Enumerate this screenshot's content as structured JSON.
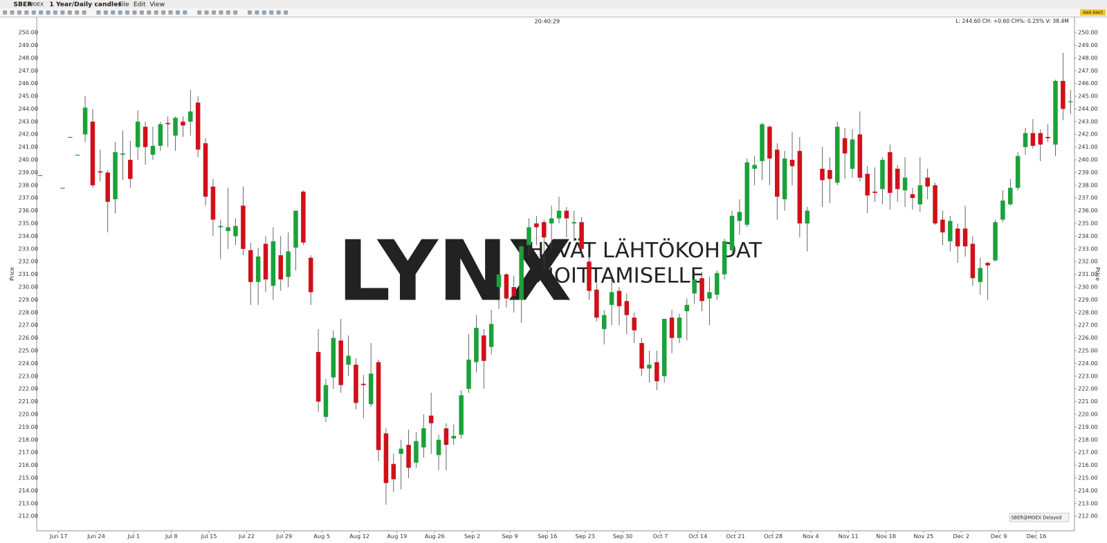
{
  "app": {
    "symbol": "SBER",
    "exchange": "MOEX",
    "period": "1 Year/Daily candles",
    "menu": [
      "File",
      "Edit",
      "View"
    ],
    "time": "20:40:29",
    "quote": "L: 244.60   CH: +0.60 CH%: 0.25% V: 38.4M",
    "add_alert": "Add Alert",
    "feed": "SBER@MOEX Delayed",
    "watermark": {
      "brand": "LYNX",
      "slogan": [
        "HYVÄT LÄHTÖKOHDAT",
        "SIJOITTAMISELLE"
      ]
    }
  },
  "chart_data": {
    "type": "candlestick",
    "y_label": "Price",
    "up_color": "#1aa23a",
    "down_color": "#d0101a",
    "categories": [
      null,
      null,
      "Jun 17",
      null,
      null,
      null,
      null,
      "Jun 24",
      null,
      null,
      null,
      null,
      "Jul 1",
      null,
      null,
      null,
      null,
      "Jul 8",
      null,
      null,
      null,
      null,
      "Jul 15",
      null,
      null,
      null,
      null,
      "Jul 22",
      null,
      null,
      null,
      null,
      "Jul 29",
      null,
      null,
      null,
      null,
      "Aug 5",
      null,
      null,
      null,
      null,
      "Aug 12",
      null,
      null,
      null,
      null,
      "Aug 19",
      null,
      null,
      null,
      null,
      "Aug 26",
      null,
      null,
      null,
      null,
      "Sep 2",
      null,
      null,
      null,
      null,
      "Sep 9",
      null,
      null,
      null,
      null,
      "Sep 16",
      null,
      null,
      null,
      null,
      "Sep 23",
      null,
      null,
      null,
      null,
      "Sep 30",
      null,
      null,
      null,
      null,
      "Oct 7",
      null,
      null,
      null,
      null,
      "Oct 14",
      null,
      null,
      null,
      null,
      "Oct 21",
      null,
      null,
      null,
      null,
      "Oct 28",
      null,
      null,
      null,
      null,
      "Nov 4",
      null,
      null,
      null,
      null,
      "Nov 11",
      null,
      null,
      null,
      null,
      "Nov 18",
      null,
      null,
      null,
      null,
      "Nov 25",
      null,
      null,
      null,
      null,
      "Dec 2",
      null,
      null,
      null,
      null,
      "Dec 9",
      null,
      null,
      null,
      null,
      "Dec 16",
      null,
      null,
      null,
      null,
      null
    ],
    "open": [
      238.8,
      null,
      null,
      237.8,
      241.8,
      240.4,
      242,
      243,
      239.1,
      239,
      236.9,
      240.4,
      240,
      241,
      242.6,
      240.4,
      241.1,
      242.9,
      241.9,
      243,
      243,
      244.5,
      241.3,
      237.9,
      234.7,
      234.4,
      234,
      236.4,
      232.9,
      230.4,
      233.4,
      230.1,
      232.5,
      230.8,
      233.1,
      237.5,
      232.3,
      224.9,
      219.8,
      222.9,
      225.8,
      223.9,
      223.9,
      222.4,
      220.8,
      224.1,
      218.5,
      216.1,
      216.9,
      217.6,
      216.2,
      217.4,
      219.9,
      216.8,
      218.9,
      218.1,
      218.4,
      222,
      224.1,
      226.2,
      225.3,
      230,
      231,
      230,
      229,
      233.3,
      235,
      235.1,
      235,
      235.4,
      236,
      235,
      235.1,
      232,
      229.8,
      226.7,
      228.6,
      229.7,
      228.9,
      227.6,
      225.6,
      223.6,
      224.1,
      223,
      227.6,
      226,
      228.1,
      229.5,
      230.7,
      229.1,
      229.4,
      231,
      232.9,
      235.2,
      234.9,
      239.3,
      239.9,
      242.6,
      240.8,
      236.9,
      240,
      240.7,
      235,
      null,
      239.3,
      239.2,
      238.2,
      241.7,
      239.3,
      242,
      238.9,
      237.5,
      237.7,
      240.6,
      239.3,
      237.6,
      237.3,
      236.5,
      238.6,
      238,
      235.3,
      233.6,
      234.6,
      234.6,
      233.4,
      230.4,
      231.9,
      232.1,
      235.3,
      236.5,
      237.8,
      241,
      242.1,
      242.1,
      241.8,
      241.2,
      246.2,
      244.6
    ],
    "high": [
      238.8,
      null,
      null,
      237.8,
      241.8,
      240.4,
      245,
      244,
      240.8,
      239.2,
      241.4,
      242.3,
      241.5,
      243.9,
      243,
      242.6,
      243,
      243.4,
      243.4,
      243.4,
      245.5,
      245,
      241.7,
      238.5,
      235.3,
      237.8,
      235.4,
      237.9,
      233.5,
      233.1,
      234,
      234.7,
      234,
      234.3,
      236,
      237.6,
      232.5,
      226.7,
      222.8,
      226.6,
      227.5,
      226.2,
      224.4,
      223.1,
      225.6,
      224.3,
      218.9,
      216.9,
      218,
      218.8,
      218.6,
      220,
      221.7,
      218.4,
      219.3,
      219.2,
      221.9,
      226.3,
      227.8,
      226.7,
      228.2,
      231,
      231.1,
      230.9,
      233.5,
      235.4,
      235.6,
      235.3,
      236.4,
      237.1,
      236.3,
      236,
      235.5,
      232.5,
      230.3,
      228.2,
      230.7,
      230,
      229.5,
      228,
      226,
      225,
      225,
      227.5,
      228.2,
      227.9,
      229.1,
      231.2,
      231.2,
      230.8,
      231.3,
      233.8,
      236,
      236.9,
      240.1,
      240.3,
      242.9,
      242.7,
      241.3,
      240.7,
      242.2,
      241.8,
      236.3,
      null,
      241,
      240.2,
      243,
      242.5,
      242.4,
      243.8,
      239.5,
      239.4,
      240.2,
      241.2,
      239.6,
      240.2,
      237.8,
      240.2,
      239.3,
      238.2,
      236,
      235.6,
      235,
      236.4,
      234,
      232.3,
      232,
      235.3,
      237.6,
      238.5,
      240.6,
      242.5,
      243.2,
      242.4,
      242.8,
      246.3,
      248.4,
      245.5
    ],
    "low": [
      238.8,
      null,
      null,
      237.8,
      241.8,
      240.4,
      241.4,
      237.8,
      238.3,
      234.3,
      235.8,
      238.4,
      237.8,
      240,
      239.6,
      240,
      240.7,
      241,
      240.7,
      241.8,
      241.9,
      240.2,
      236.4,
      234,
      232.2,
      233,
      233.3,
      232.5,
      228.6,
      228.6,
      229.6,
      229,
      229.7,
      230,
      231.3,
      233.3,
      228.6,
      220.2,
      219.4,
      222,
      221.7,
      223,
      220.4,
      219.7,
      220.6,
      216.3,
      212.9,
      213.9,
      214.1,
      215,
      215.8,
      216.6,
      216.9,
      215.6,
      215.6,
      217.6,
      218.1,
      221.7,
      223.3,
      222,
      224.7,
      228.3,
      228.4,
      228,
      227.2,
      232.4,
      233.3,
      231.4,
      233,
      235,
      233.9,
      233.6,
      232.3,
      229,
      227.3,
      225.5,
      227,
      227,
      226.3,
      225.6,
      223,
      222.5,
      221.9,
      222.5,
      224.8,
      225.6,
      225.8,
      228.7,
      228.1,
      227,
      229,
      230.6,
      232.7,
      234.1,
      234.7,
      238,
      238.4,
      238,
      235.3,
      236,
      238,
      233.9,
      232.8,
      null,
      236.3,
      236.6,
      238,
      238.5,
      238.6,
      238.3,
      235.8,
      236.7,
      236.5,
      236.1,
      236.7,
      236.3,
      236.1,
      235.9,
      236.9,
      234.9,
      233.3,
      232.8,
      231.9,
      232.4,
      230.1,
      229.4,
      229,
      232,
      235.1,
      236.4,
      237.6,
      240.4,
      240.9,
      239.9,
      241.4,
      240.3,
      243.1,
      243.6
    ],
    "close": [
      238.8,
      null,
      null,
      237.8,
      241.8,
      240.4,
      244.1,
      238,
      239,
      236.7,
      240.6,
      240.5,
      238.5,
      243,
      241,
      241.1,
      242.8,
      242.8,
      243.3,
      242.7,
      243.8,
      240.8,
      237.1,
      235.3,
      234.8,
      234.7,
      234.8,
      233,
      230.4,
      232.4,
      230.6,
      233.6,
      230.6,
      232.8,
      236,
      233.5,
      229.6,
      221,
      222.3,
      226,
      222.3,
      224.6,
      220.9,
      222.3,
      223.2,
      217.2,
      214.6,
      214.9,
      217.3,
      215.8,
      217.9,
      218.9,
      219.3,
      218,
      217.6,
      218.3,
      221.5,
      224.3,
      226.8,
      224.2,
      227.1,
      231,
      229.1,
      229.3,
      233.2,
      234.7,
      234.7,
      233.9,
      235.4,
      236,
      235.4,
      235.1,
      233,
      229.7,
      227.6,
      227.8,
      229.6,
      228.5,
      227.8,
      226.6,
      223.6,
      223.9,
      222.6,
      227.5,
      226,
      227.6,
      228.6,
      230.6,
      228.9,
      229.6,
      231.1,
      233.6,
      235.6,
      235.9,
      239.8,
      239.6,
      242.8,
      240.1,
      237.1,
      240.1,
      239.5,
      235,
      236,
      null,
      238.4,
      238.5,
      242.6,
      240.5,
      241.6,
      238.6,
      237.2,
      237.4,
      240,
      237.4,
      237.7,
      238.6,
      237,
      238,
      237.9,
      235,
      234.3,
      235.2,
      233.2,
      233.2,
      230.7,
      231.5,
      231.7,
      235.1,
      236.8,
      237.8,
      240.3,
      242.1,
      241.1,
      241.2,
      241.7,
      246.2,
      244,
      244.6
    ],
    "ylim": [
      210.84,
      251.22
    ],
    "yticks": [
      {
        "value": 212,
        "label": "212.00"
      },
      {
        "value": 213,
        "label": "213.00"
      },
      {
        "value": 214,
        "label": "214.00"
      },
      {
        "value": 215,
        "label": "215.00"
      },
      {
        "value": 216,
        "label": "216.00"
      },
      {
        "value": 217,
        "label": "217.00"
      },
      {
        "value": 218,
        "label": "218.00"
      },
      {
        "value": 219,
        "label": "219.00"
      },
      {
        "value": 220,
        "label": "220.00"
      },
      {
        "value": 221,
        "label": "221.00"
      },
      {
        "value": 222,
        "label": "222.00"
      },
      {
        "value": 223,
        "label": "223.00"
      },
      {
        "value": 224,
        "label": "224.00"
      },
      {
        "value": 225,
        "label": "225.00"
      },
      {
        "value": 226,
        "label": "226.00"
      },
      {
        "value": 227,
        "label": "227.00"
      },
      {
        "value": 228,
        "label": "228.00"
      },
      {
        "value": 229,
        "label": "229.00"
      },
      {
        "value": 230,
        "label": "230.00"
      },
      {
        "value": 231,
        "label": "231.00"
      },
      {
        "value": 232,
        "label": "232.00"
      },
      {
        "value": 233,
        "label": "233.00"
      },
      {
        "value": 234,
        "label": "234.00"
      },
      {
        "value": 235,
        "label": "235.00"
      },
      {
        "value": 236,
        "label": "236.00"
      },
      {
        "value": 237,
        "label": "237.00"
      },
      {
        "value": 238,
        "label": "238.00"
      },
      {
        "value": 239,
        "label": "239.00"
      },
      {
        "value": 240,
        "label": "240.00"
      },
      {
        "value": 241,
        "label": "241.00"
      },
      {
        "value": 242,
        "label": "242.00"
      },
      {
        "value": 243,
        "label": "243.00"
      },
      {
        "value": 244,
        "label": "244.00"
      },
      {
        "value": 245,
        "label": "245.00"
      },
      {
        "value": 246,
        "label": "246.00"
      },
      {
        "value": 247,
        "label": "247.00"
      },
      {
        "value": 248,
        "label": "248.00"
      },
      {
        "value": 249,
        "label": "249.00"
      },
      {
        "value": 250,
        "label": "250.00"
      }
    ],
    "grid": false
  }
}
